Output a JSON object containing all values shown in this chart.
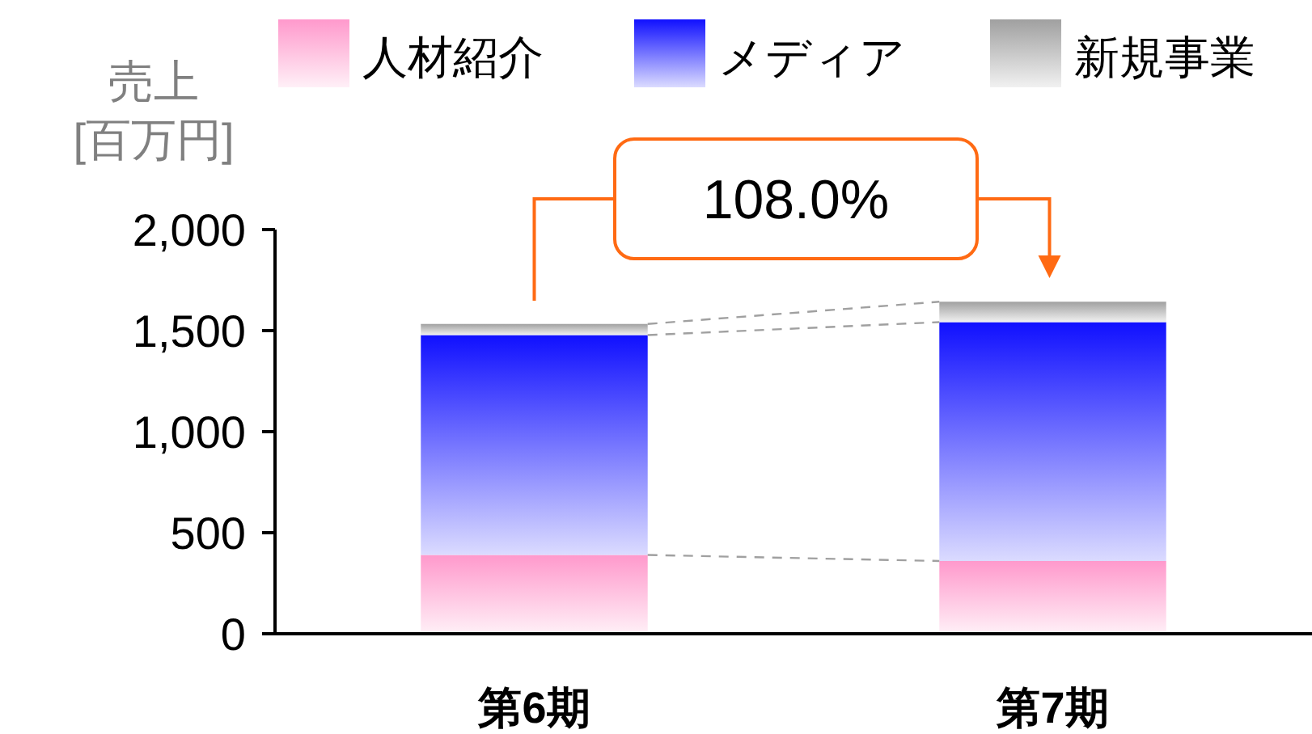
{
  "chart_data": {
    "type": "bar",
    "stacked": true,
    "ylabel": "売上\n[百万円]",
    "categories": [
      "第6期",
      "第7期"
    ],
    "series": [
      {
        "name": "人材紹介",
        "color": "#ff99cc",
        "values": [
          390,
          360
        ]
      },
      {
        "name": "メディア",
        "color": "#1010ff",
        "values": [
          1088,
          1182
        ]
      },
      {
        "name": "新規事業",
        "color": "#a0a0a0",
        "values": [
          55,
          101
        ]
      }
    ],
    "ylim": [
      0,
      2000
    ],
    "yticks": [
      {
        "value": 0,
        "label": "0"
      },
      {
        "value": 500,
        "label": "500"
      },
      {
        "value": 1000,
        "label": "1,000"
      },
      {
        "value": 1500,
        "label": "1,500"
      },
      {
        "value": 2000,
        "label": "2,000"
      }
    ],
    "legend": "top",
    "grid": false,
    "annotations": [
      "108.0%"
    ]
  }
}
